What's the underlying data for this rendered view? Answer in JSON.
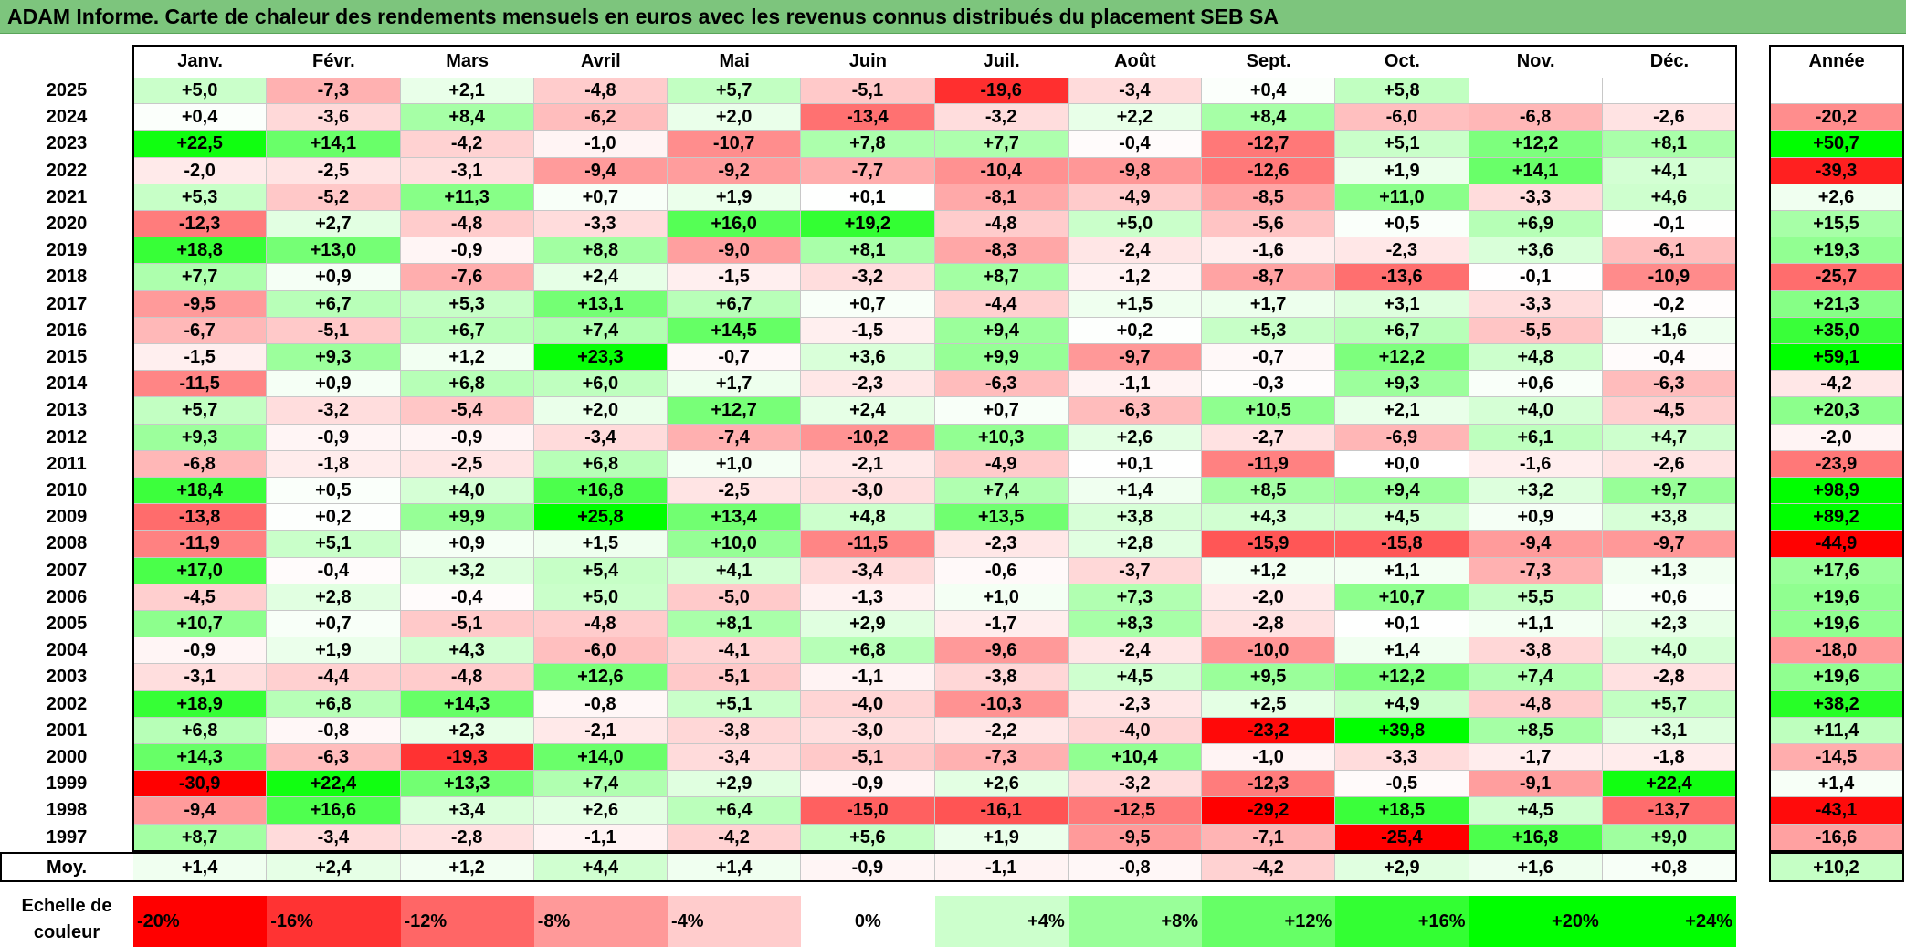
{
  "title": "ADAM Informe. Carte de chaleur des rendements mensuels en euros avec les revenus connus distribués du placement SEB SA",
  "chart_data": {
    "type": "heatmap",
    "months": [
      "Janv.",
      "Févr.",
      "Mars",
      "Avril",
      "Mai",
      "Juin",
      "Juil.",
      "Août",
      "Sept.",
      "Oct.",
      "Nov.",
      "Déc."
    ],
    "year_header": "Année",
    "rows": [
      {
        "year": "2025",
        "values": [
          "+5,0",
          "-7,3",
          "+2,1",
          "-4,8",
          "+5,7",
          "-5,1",
          "-19,6",
          "-3,4",
          "+0,4",
          "+5,8",
          "",
          ""
        ],
        "annual": ""
      },
      {
        "year": "2024",
        "values": [
          "+0,4",
          "-3,6",
          "+8,4",
          "-6,2",
          "+2,0",
          "-13,4",
          "-3,2",
          "+2,2",
          "+8,4",
          "-6,0",
          "-6,8",
          "-2,6"
        ],
        "annual": "-20,2"
      },
      {
        "year": "2023",
        "values": [
          "+22,5",
          "+14,1",
          "-4,2",
          "-1,0",
          "-10,7",
          "+7,8",
          "+7,7",
          "-0,4",
          "-12,7",
          "+5,1",
          "+12,2",
          "+8,1"
        ],
        "annual": "+50,7"
      },
      {
        "year": "2022",
        "values": [
          "-2,0",
          "-2,5",
          "-3,1",
          "-9,4",
          "-9,2",
          "-7,7",
          "-10,4",
          "-9,8",
          "-12,6",
          "+1,9",
          "+14,1",
          "+4,1"
        ],
        "annual": "-39,3"
      },
      {
        "year": "2021",
        "values": [
          "+5,3",
          "-5,2",
          "+11,3",
          "+0,7",
          "+1,9",
          "+0,1",
          "-8,1",
          "-4,9",
          "-8,5",
          "+11,0",
          "-3,3",
          "+4,6"
        ],
        "annual": "+2,6"
      },
      {
        "year": "2020",
        "values": [
          "-12,3",
          "+2,7",
          "-4,8",
          "-3,3",
          "+16,0",
          "+19,2",
          "-4,8",
          "+5,0",
          "-5,6",
          "+0,5",
          "+6,9",
          "-0,1"
        ],
        "annual": "+15,5"
      },
      {
        "year": "2019",
        "values": [
          "+18,8",
          "+13,0",
          "-0,9",
          "+8,8",
          "-9,0",
          "+8,1",
          "-8,3",
          "-2,4",
          "-1,6",
          "-2,3",
          "+3,6",
          "-6,1"
        ],
        "annual": "+19,3"
      },
      {
        "year": "2018",
        "values": [
          "+7,7",
          "+0,9",
          "-7,6",
          "+2,4",
          "-1,5",
          "-3,2",
          "+8,7",
          "-1,2",
          "-8,7",
          "-13,6",
          "-0,1",
          "-10,9"
        ],
        "annual": "-25,7"
      },
      {
        "year": "2017",
        "values": [
          "-9,5",
          "+6,7",
          "+5,3",
          "+13,1",
          "+6,7",
          "+0,7",
          "-4,4",
          "+1,5",
          "+1,7",
          "+3,1",
          "-3,3",
          "-0,2"
        ],
        "annual": "+21,3"
      },
      {
        "year": "2016",
        "values": [
          "-6,7",
          "-5,1",
          "+6,7",
          "+7,4",
          "+14,5",
          "-1,5",
          "+9,4",
          "+0,2",
          "+5,3",
          "+6,7",
          "-5,5",
          "+1,6"
        ],
        "annual": "+35,0"
      },
      {
        "year": "2015",
        "values": [
          "-1,5",
          "+9,3",
          "+1,2",
          "+23,3",
          "-0,7",
          "+3,6",
          "+9,9",
          "-9,7",
          "-0,7",
          "+12,2",
          "+4,8",
          "-0,4"
        ],
        "annual": "+59,1"
      },
      {
        "year": "2014",
        "values": [
          "-11,5",
          "+0,9",
          "+6,8",
          "+6,0",
          "+1,7",
          "-2,3",
          "-6,3",
          "-1,1",
          "-0,3",
          "+9,3",
          "+0,6",
          "-6,3"
        ],
        "annual": "-4,2"
      },
      {
        "year": "2013",
        "values": [
          "+5,7",
          "-3,2",
          "-5,4",
          "+2,0",
          "+12,7",
          "+2,4",
          "+0,7",
          "-6,3",
          "+10,5",
          "+2,1",
          "+4,0",
          "-4,5"
        ],
        "annual": "+20,3"
      },
      {
        "year": "2012",
        "values": [
          "+9,3",
          "-0,9",
          "-0,9",
          "-3,4",
          "-7,4",
          "-10,2",
          "+10,3",
          "+2,6",
          "-2,7",
          "-6,9",
          "+6,1",
          "+4,7"
        ],
        "annual": "-2,0"
      },
      {
        "year": "2011",
        "values": [
          "-6,8",
          "-1,8",
          "-2,5",
          "+6,8",
          "+1,0",
          "-2,1",
          "-4,9",
          "+0,1",
          "-11,9",
          "+0,0",
          "-1,6",
          "-2,6"
        ],
        "annual": "-23,9"
      },
      {
        "year": "2010",
        "values": [
          "+18,4",
          "+0,5",
          "+4,0",
          "+16,8",
          "-2,5",
          "-3,0",
          "+7,4",
          "+1,4",
          "+8,5",
          "+9,4",
          "+3,2",
          "+9,7"
        ],
        "annual": "+98,9"
      },
      {
        "year": "2009",
        "values": [
          "-13,8",
          "+0,2",
          "+9,9",
          "+25,8",
          "+13,4",
          "+4,8",
          "+13,5",
          "+3,8",
          "+4,3",
          "+4,5",
          "+0,9",
          "+3,8"
        ],
        "annual": "+89,2"
      },
      {
        "year": "2008",
        "values": [
          "-11,9",
          "+5,1",
          "+0,9",
          "+1,5",
          "+10,0",
          "-11,5",
          "-2,3",
          "+2,8",
          "-15,9",
          "-15,8",
          "-9,4",
          "-9,7"
        ],
        "annual": "-44,9"
      },
      {
        "year": "2007",
        "values": [
          "+17,0",
          "-0,4",
          "+3,2",
          "+5,4",
          "+4,1",
          "-3,4",
          "-0,6",
          "-3,7",
          "+1,2",
          "+1,1",
          "-7,3",
          "+1,3"
        ],
        "annual": "+17,6"
      },
      {
        "year": "2006",
        "values": [
          "-4,5",
          "+2,8",
          "-0,4",
          "+5,0",
          "-5,0",
          "-1,3",
          "+1,0",
          "+7,3",
          "-2,0",
          "+10,7",
          "+5,5",
          "+0,6"
        ],
        "annual": "+19,6"
      },
      {
        "year": "2005",
        "values": [
          "+10,7",
          "+0,7",
          "-5,1",
          "-4,8",
          "+8,1",
          "+2,9",
          "-1,7",
          "+8,3",
          "-2,8",
          "+0,1",
          "+1,1",
          "+2,3"
        ],
        "annual": "+19,6"
      },
      {
        "year": "2004",
        "values": [
          "-0,9",
          "+1,9",
          "+4,3",
          "-6,0",
          "-4,1",
          "+6,8",
          "-9,6",
          "-2,4",
          "-10,0",
          "+1,4",
          "-3,8",
          "+4,0"
        ],
        "annual": "-18,0"
      },
      {
        "year": "2003",
        "values": [
          "-3,1",
          "-4,4",
          "-4,8",
          "+12,6",
          "-5,1",
          "-1,1",
          "-3,8",
          "+4,5",
          "+9,5",
          "+12,2",
          "+7,4",
          "-2,8"
        ],
        "annual": "+19,6"
      },
      {
        "year": "2002",
        "values": [
          "+18,9",
          "+6,8",
          "+14,3",
          "-0,8",
          "+5,1",
          "-4,0",
          "-10,3",
          "-2,3",
          "+2,5",
          "+4,9",
          "-4,8",
          "+5,7"
        ],
        "annual": "+38,2"
      },
      {
        "year": "2001",
        "values": [
          "+6,8",
          "-0,8",
          "+2,3",
          "-2,1",
          "-3,8",
          "-3,0",
          "-2,2",
          "-4,0",
          "-23,2",
          "+39,8",
          "+8,5",
          "+3,1"
        ],
        "annual": "+11,4"
      },
      {
        "year": "2000",
        "values": [
          "+14,3",
          "-6,3",
          "-19,3",
          "+14,0",
          "-3,4",
          "-5,1",
          "-7,3",
          "+10,4",
          "-1,0",
          "-3,3",
          "-1,7",
          "-1,8"
        ],
        "annual": "-14,5"
      },
      {
        "year": "1999",
        "values": [
          "-30,9",
          "+22,4",
          "+13,3",
          "+7,4",
          "+2,9",
          "-0,9",
          "+2,6",
          "-3,2",
          "-12,3",
          "-0,5",
          "-9,1",
          "+22,4"
        ],
        "annual": "+1,4"
      },
      {
        "year": "1998",
        "values": [
          "-9,4",
          "+16,6",
          "+3,4",
          "+2,6",
          "+6,4",
          "-15,0",
          "-16,1",
          "-12,5",
          "-29,2",
          "+18,5",
          "+4,5",
          "-13,7"
        ],
        "annual": "-43,1"
      },
      {
        "year": "1997",
        "values": [
          "+8,7",
          "-3,4",
          "-2,8",
          "-1,1",
          "-4,2",
          "+5,6",
          "+1,9",
          "-9,5",
          "-7,1",
          "-25,4",
          "+16,8",
          "+9,0"
        ],
        "annual": "-16,6"
      }
    ],
    "average": {
      "label": "Moy.",
      "values": [
        "+1,4",
        "+2,4",
        "+1,2",
        "+4,4",
        "+1,4",
        "-0,9",
        "-1,1",
        "-0,8",
        "-4,2",
        "+2,9",
        "+1,6",
        "+0,8"
      ],
      "annual": "+10,2"
    },
    "scale": {
      "label_line1": "Echelle de",
      "label_line2": "couleur",
      "steps": [
        "-20%",
        "-16%",
        "-12%",
        "-8%",
        "-4%",
        "0%",
        "+4%",
        "+8%",
        "+12%",
        "+16%",
        "+20%",
        "+24%"
      ]
    }
  }
}
